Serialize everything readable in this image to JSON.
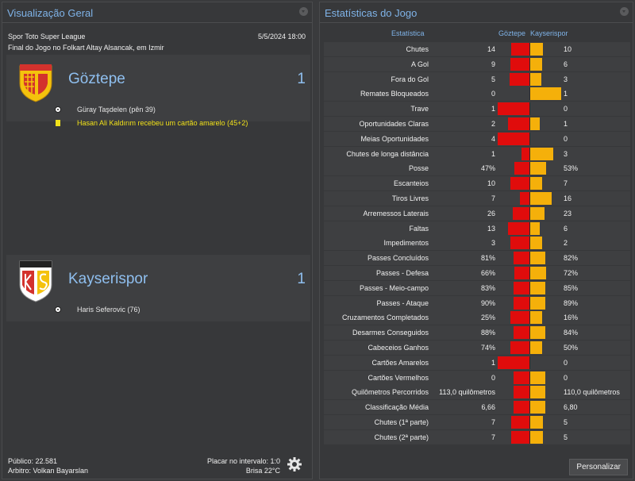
{
  "left_panel": {
    "title": "Visualização Geral",
    "competition": "Spor Toto Super League",
    "datetime": "5/5/2024 18:00",
    "venue": "Final do Jogo no Folkart Altay Alsancak, em Izmir",
    "home": {
      "name": "Göztepe",
      "score": "1",
      "crest_text": "GÖZTEPE",
      "crest_colors": [
        "#d3322d",
        "#f4c20d"
      ],
      "events": [
        {
          "icon": "ball-icon",
          "text": "Güray Taşdelen (pên 39)"
        },
        {
          "icon": "yellow-card-icon",
          "text": "Hasan Ali Kaldırım recebeu um cartão amarelo (45+2)",
          "color": "#f2e21a"
        }
      ]
    },
    "away": {
      "name": "Kayserispor",
      "score": "1",
      "crest_text": "KAYSERISPOR",
      "crest_colors": [
        "#d3322d",
        "#f4c20d"
      ],
      "events": [
        {
          "icon": "ball-icon",
          "text": "Haris Seferovic (76)"
        }
      ]
    },
    "footer": {
      "attendance": "Público: 22.581",
      "referee": "Arbitro: Volkan Bayarslan",
      "halftime": "Placar no intervalo: 1:0",
      "weather": "Brisa 22°C"
    }
  },
  "right_panel": {
    "title": "Estatísticas do Jogo",
    "col_stat": "Estatística",
    "col_home": "Göztepe",
    "col_away": "Kayserispor",
    "home_color": "#e00c0c",
    "away_color": "#f5b00a",
    "customize_label": "Personalizar",
    "rows": [
      {
        "label": "Chutes",
        "home": "14",
        "away": "10",
        "home_share": 0.58
      },
      {
        "label": "A Gol",
        "home": "9",
        "away": "6",
        "home_share": 0.6
      },
      {
        "label": "Fora do Gol",
        "home": "5",
        "away": "3",
        "home_share": 0.625
      },
      {
        "label": "Remates Bloqueados",
        "home": "0",
        "away": "1",
        "home_share": 0.0
      },
      {
        "label": "Trave",
        "home": "1",
        "away": "0",
        "home_share": 1.0
      },
      {
        "label": "Oportunidades Claras",
        "home": "2",
        "away": "1",
        "home_share": 0.667
      },
      {
        "label": "Meias Oportunidades",
        "home": "4",
        "away": "0",
        "home_share": 1.0
      },
      {
        "label": "Chutes de longa distância",
        "home": "1",
        "away": "3",
        "home_share": 0.25
      },
      {
        "label": "Posse",
        "home": "47%",
        "away": "53%",
        "home_share": 0.47
      },
      {
        "label": "Escanteios",
        "home": "10",
        "away": "7",
        "home_share": 0.59
      },
      {
        "label": "Tiros Livres",
        "home": "7",
        "away": "16",
        "home_share": 0.3
      },
      {
        "label": "Arremessos Laterais",
        "home": "26",
        "away": "23",
        "home_share": 0.53
      },
      {
        "label": "Faltas",
        "home": "13",
        "away": "6",
        "home_share": 0.68
      },
      {
        "label": "Impedimentos",
        "home": "3",
        "away": "2",
        "home_share": 0.6
      },
      {
        "label": "Passes Concluídos",
        "home": "81%",
        "away": "82%",
        "home_share": 0.5
      },
      {
        "label": "Passes - Defesa",
        "home": "66%",
        "away": "72%",
        "home_share": 0.48
      },
      {
        "label": "Passes - Meio-campo",
        "home": "83%",
        "away": "85%",
        "home_share": 0.49
      },
      {
        "label": "Passes - Ataque",
        "home": "90%",
        "away": "89%",
        "home_share": 0.5
      },
      {
        "label": "Cruzamentos Completados",
        "home": "25%",
        "away": "16%",
        "home_share": 0.61
      },
      {
        "label": "Desarmes Conseguidos",
        "home": "88%",
        "away": "84%",
        "home_share": 0.51
      },
      {
        "label": "Cabeceios Ganhos",
        "home": "74%",
        "away": "50%",
        "home_share": 0.6
      },
      {
        "label": "Cartões Amarelos",
        "home": "1",
        "away": "0",
        "home_share": 1.0
      },
      {
        "label": "Cartões Vermelhos",
        "home": "0",
        "away": "0",
        "home_share": 0.5
      },
      {
        "label": "Quilômetros Percorridos",
        "home": "113,0 quilômetros",
        "away": "110,0 quilômetros",
        "home_share": 0.51
      },
      {
        "label": "Classificação Média",
        "home": "6,66",
        "away": "6,80",
        "home_share": 0.49
      },
      {
        "label": "Chutes (1ª parte)",
        "home": "7",
        "away": "5",
        "home_share": 0.58
      },
      {
        "label": "Chutes (2ª parte)",
        "home": "7",
        "away": "5",
        "home_share": 0.58
      }
    ]
  }
}
